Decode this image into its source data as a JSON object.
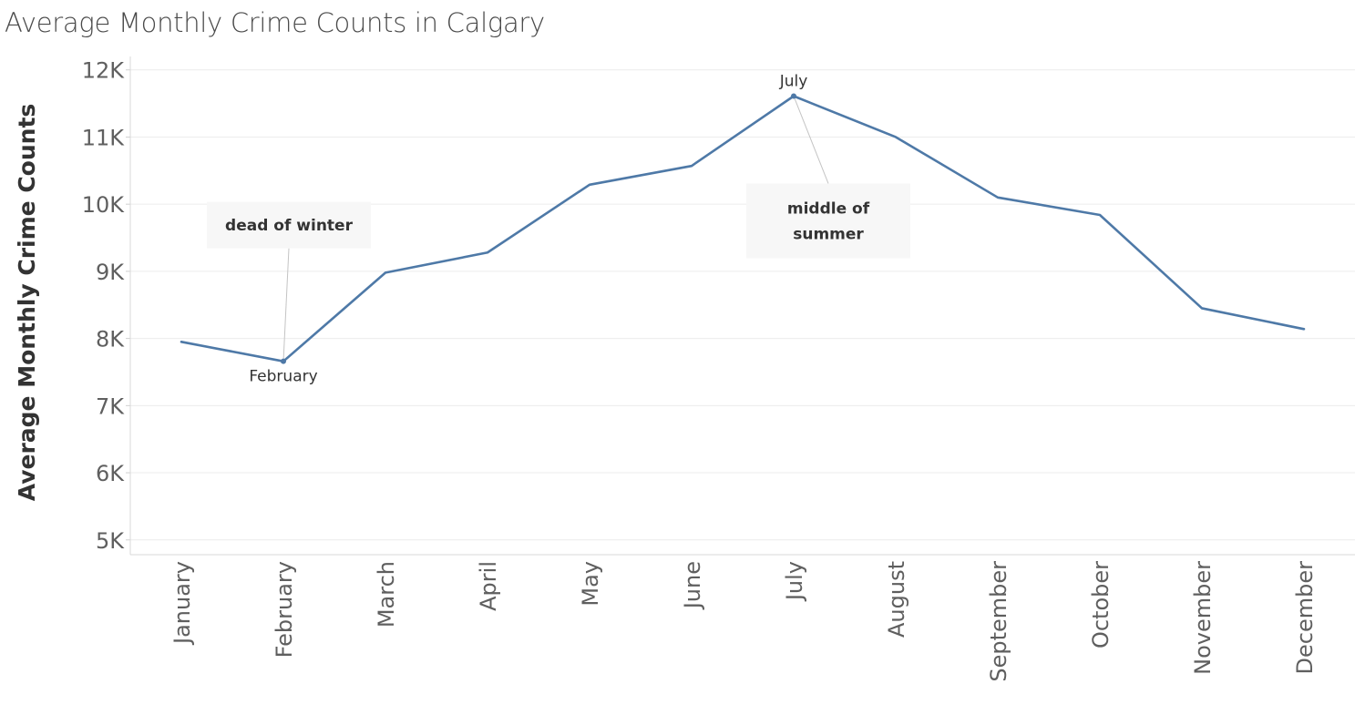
{
  "chart_data": {
    "type": "line",
    "title": "Average Monthly Crime Counts in Calgary",
    "xlabel": "",
    "ylabel": "Average Monthly Crime Counts",
    "categories": [
      "January",
      "February",
      "March",
      "April",
      "May",
      "June",
      "July",
      "August",
      "September",
      "October",
      "November",
      "December"
    ],
    "series": [
      {
        "name": "Average Monthly Crime Counts",
        "color": "#4e79a7",
        "values": [
          7950,
          7660,
          8980,
          9280,
          10290,
          10570,
          11610,
          11000,
          10100,
          9840,
          8450,
          8140
        ]
      }
    ],
    "ylim": [
      4780,
      12200
    ],
    "yticks": [
      5000,
      6000,
      7000,
      8000,
      9000,
      10000,
      11000,
      12000
    ],
    "ytick_labels": [
      "5K",
      "6K",
      "7K",
      "8K",
      "9K",
      "10K",
      "11K",
      "12K"
    ],
    "grid": true,
    "point_labels": [
      {
        "category": "February",
        "text": "February",
        "position": "below"
      },
      {
        "category": "July",
        "text": "July",
        "position": "above"
      }
    ],
    "annotations": [
      {
        "category": "February",
        "lines": [
          "dead of winter"
        ],
        "placement": "above"
      },
      {
        "category": "July",
        "lines": [
          "middle of",
          "summer"
        ],
        "placement": "below"
      }
    ]
  }
}
